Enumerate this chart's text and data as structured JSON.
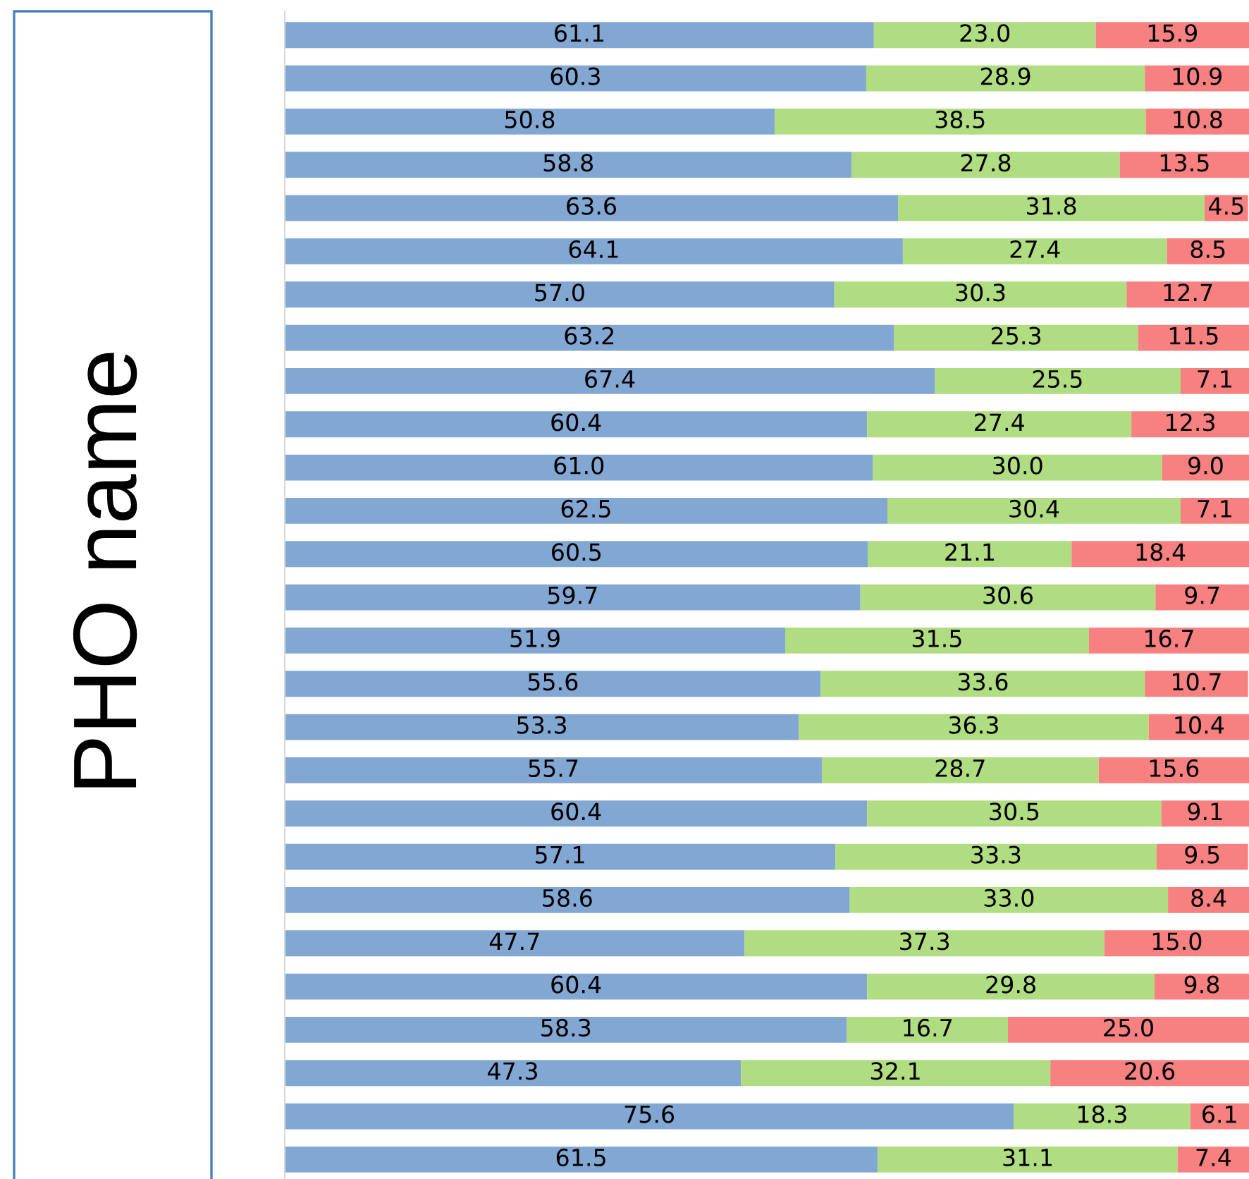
{
  "chart_data": {
    "type": "bar",
    "orientation": "horizontal",
    "stacked": true,
    "ylabel": "PHO name",
    "categories": [
      null,
      null,
      null,
      null,
      null,
      null,
      null,
      null,
      null,
      null,
      null,
      null,
      null,
      null,
      null,
      null,
      null,
      null,
      null,
      null,
      null,
      null,
      null,
      null,
      null,
      null,
      null
    ],
    "xlim": [
      0,
      100
    ],
    "grid": false,
    "legend": false,
    "series": [
      {
        "color": "#82a7d3",
        "values": [
          61.1,
          60.3,
          50.8,
          58.8,
          63.6,
          64.1,
          57.0,
          63.2,
          67.4,
          60.4,
          61.0,
          62.5,
          60.5,
          59.7,
          51.9,
          55.6,
          53.3,
          55.7,
          60.4,
          57.1,
          58.6,
          47.7,
          60.4,
          58.3,
          47.3,
          75.6,
          61.5
        ],
        "value_labels": [
          "61.1",
          "60.3",
          "50.8",
          "58.8",
          "63.6",
          "64.1",
          "57.0",
          "63.2",
          "67.4",
          "60.4",
          "61.0",
          "62.5",
          "60.5",
          "59.7",
          "51.9",
          "55.6",
          "53.3",
          "55.7",
          "60.4",
          "57.1",
          "58.6",
          "47.7",
          "60.4",
          "58.3",
          "47.3",
          "75.6",
          "61.5"
        ]
      },
      {
        "color": "#b0dc82",
        "values": [
          23.0,
          28.9,
          38.5,
          27.8,
          31.8,
          27.4,
          30.3,
          25.3,
          25.5,
          27.4,
          30.0,
          30.4,
          21.1,
          30.6,
          31.5,
          33.6,
          36.3,
          28.7,
          30.5,
          33.3,
          33.0,
          37.3,
          29.8,
          16.7,
          32.1,
          18.3,
          31.1
        ],
        "value_labels": [
          "23.0",
          "28.9",
          "38.5",
          "27.8",
          "31.8",
          "27.4",
          "30.3",
          "25.3",
          "25.5",
          "27.4",
          "30.0",
          "30.4",
          "21.1",
          "30.6",
          "31.5",
          "33.6",
          "36.3",
          "28.7",
          "30.5",
          "33.3",
          "33.0",
          "37.3",
          "29.8",
          "16.7",
          "32.1",
          "18.3",
          "31.1"
        ]
      },
      {
        "color": "#f78080",
        "values": [
          15.9,
          10.9,
          10.8,
          13.5,
          4.5,
          8.5,
          12.7,
          11.5,
          7.1,
          12.3,
          9.0,
          7.1,
          18.4,
          9.7,
          16.7,
          10.7,
          10.4,
          15.6,
          9.1,
          9.5,
          8.4,
          15.0,
          9.8,
          25.0,
          20.6,
          6.1,
          7.4
        ],
        "value_labels": [
          "15.9",
          "10.9",
          "10.8",
          "13.5",
          "4.5",
          "8.5",
          "12.7",
          "11.5",
          "7.1",
          "12.3",
          "9.0",
          "7.1",
          "18.4",
          "9.7",
          "16.7",
          "10.7",
          "10.4",
          "15.6",
          "9.1",
          "9.5",
          "8.4",
          "15.0",
          "9.8",
          "25.0",
          "20.6",
          "6.1",
          "7.4"
        ]
      }
    ]
  }
}
